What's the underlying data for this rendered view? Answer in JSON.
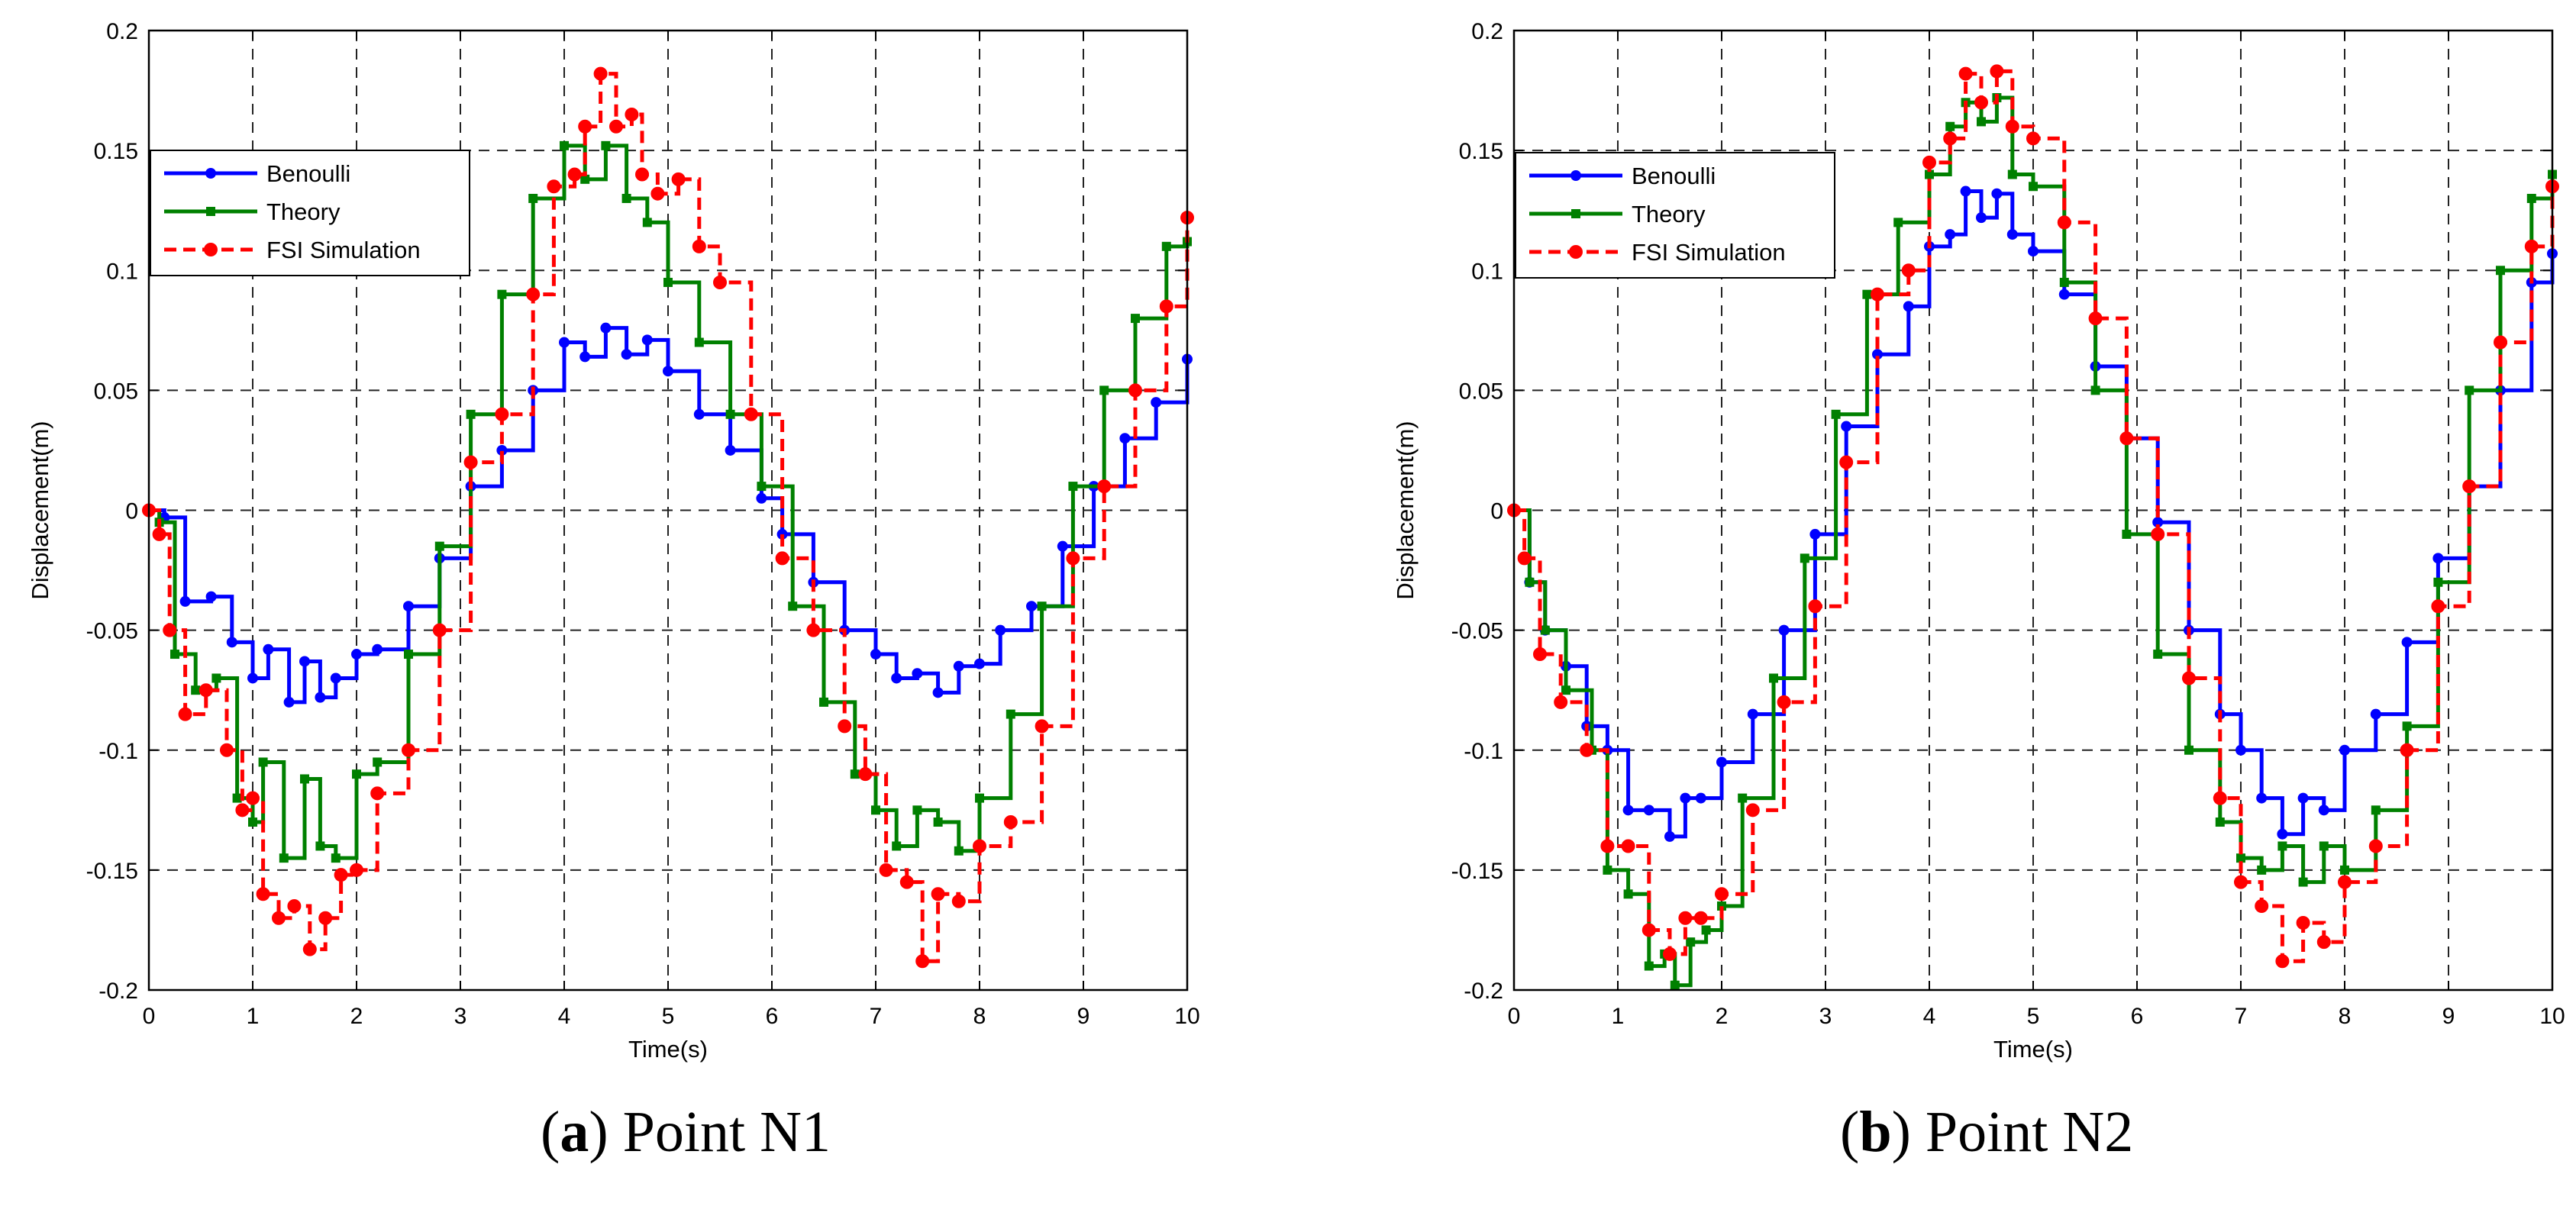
{
  "colors": {
    "benoulli": "#0000ff",
    "theory": "#008000",
    "fsi": "#ff0000"
  },
  "captions": [
    {
      "open": "(",
      "letter": "a",
      "close": ")",
      "text": " Point N1"
    },
    {
      "open": "(",
      "letter": "b",
      "close": ")",
      "text": " Point N2"
    }
  ],
  "chart_data": [
    {
      "type": "line",
      "title": "Point N1",
      "xlabel": "Time(s)",
      "ylabel": "Displacement(m)",
      "xlim": [
        0,
        10
      ],
      "ylim": [
        -0.2,
        0.2
      ],
      "xticks": [
        0,
        1,
        2,
        3,
        4,
        5,
        6,
        7,
        8,
        9,
        10
      ],
      "yticks": [
        -0.2,
        -0.15,
        -0.1,
        -0.05,
        0,
        0.05,
        0.1,
        0.15,
        0.2
      ],
      "xtick_labels": [
        "0",
        "1",
        "2",
        "3",
        "4",
        "5",
        "6",
        "7",
        "8",
        "9",
        "10"
      ],
      "ytick_labels": [
        "-0.2",
        "-0.15",
        "-0.1",
        "-0.05",
        "0",
        "0.05",
        "0.1",
        "0.15",
        "0.2"
      ],
      "grid": true,
      "legend_position": "top-left",
      "series": [
        {
          "name": "Benoulli",
          "color": "#0000ff",
          "style": "solid",
          "marker": "circle",
          "x": [
            0,
            0.15,
            0.35,
            0.6,
            0.8,
            1.0,
            1.15,
            1.35,
            1.5,
            1.65,
            1.8,
            2.0,
            2.2,
            2.5,
            2.8,
            3.1,
            3.4,
            3.7,
            4.0,
            4.2,
            4.4,
            4.6,
            4.8,
            5.0,
            5.3,
            5.6,
            5.9,
            6.1,
            6.4,
            6.7,
            7.0,
            7.2,
            7.4,
            7.6,
            7.8,
            8.0,
            8.2,
            8.5,
            8.8,
            9.1,
            9.4,
            9.7,
            10.0
          ],
          "y": [
            0,
            -0.003,
            -0.038,
            -0.036,
            -0.055,
            -0.07,
            -0.058,
            -0.08,
            -0.063,
            -0.078,
            -0.07,
            -0.06,
            -0.058,
            -0.04,
            -0.02,
            0.01,
            0.025,
            0.05,
            0.07,
            0.064,
            0.076,
            0.065,
            0.071,
            0.058,
            0.04,
            0.025,
            0.005,
            -0.01,
            -0.03,
            -0.05,
            -0.06,
            -0.07,
            -0.068,
            -0.076,
            -0.065,
            -0.064,
            -0.05,
            -0.04,
            -0.015,
            0.01,
            0.03,
            0.045,
            0.063
          ]
        },
        {
          "name": "Theory",
          "color": "#008000",
          "style": "solid",
          "marker": "square",
          "x": [
            0,
            0.1,
            0.25,
            0.45,
            0.65,
            0.85,
            1.0,
            1.1,
            1.3,
            1.5,
            1.65,
            1.8,
            2.0,
            2.2,
            2.5,
            2.8,
            3.1,
            3.4,
            3.7,
            4.0,
            4.2,
            4.4,
            4.6,
            4.8,
            5.0,
            5.3,
            5.6,
            5.9,
            6.2,
            6.5,
            6.8,
            7.0,
            7.2,
            7.4,
            7.6,
            7.8,
            8.0,
            8.3,
            8.6,
            8.9,
            9.2,
            9.5,
            9.8,
            10.0
          ],
          "y": [
            0,
            -0.005,
            -0.06,
            -0.075,
            -0.07,
            -0.12,
            -0.13,
            -0.105,
            -0.145,
            -0.112,
            -0.14,
            -0.145,
            -0.11,
            -0.105,
            -0.06,
            -0.015,
            0.04,
            0.09,
            0.13,
            0.152,
            0.138,
            0.152,
            0.13,
            0.12,
            0.095,
            0.07,
            0.04,
            0.01,
            -0.04,
            -0.08,
            -0.11,
            -0.125,
            -0.14,
            -0.125,
            -0.13,
            -0.142,
            -0.12,
            -0.085,
            -0.04,
            0.01,
            0.05,
            0.08,
            0.11,
            0.112
          ]
        },
        {
          "name": "FSI Simulation",
          "color": "#ff0000",
          "style": "dashed",
          "marker": "circle",
          "x": [
            0,
            0.1,
            0.2,
            0.35,
            0.55,
            0.75,
            0.9,
            1.0,
            1.1,
            1.25,
            1.4,
            1.55,
            1.7,
            1.85,
            2.0,
            2.2,
            2.5,
            2.8,
            3.1,
            3.4,
            3.7,
            3.9,
            4.1,
            4.2,
            4.35,
            4.5,
            4.65,
            4.75,
            4.9,
            5.1,
            5.3,
            5.5,
            5.8,
            6.1,
            6.4,
            6.7,
            6.9,
            7.1,
            7.3,
            7.45,
            7.6,
            7.8,
            8.0,
            8.3,
            8.6,
            8.9,
            9.2,
            9.5,
            9.8,
            10.0
          ],
          "y": [
            0,
            -0.01,
            -0.05,
            -0.085,
            -0.075,
            -0.1,
            -0.125,
            -0.12,
            -0.16,
            -0.17,
            -0.165,
            -0.183,
            -0.17,
            -0.152,
            -0.15,
            -0.118,
            -0.1,
            -0.05,
            0.02,
            0.04,
            0.09,
            0.135,
            0.14,
            0.16,
            0.182,
            0.16,
            0.165,
            0.14,
            0.132,
            0.138,
            0.11,
            0.095,
            0.04,
            -0.02,
            -0.05,
            -0.09,
            -0.11,
            -0.15,
            -0.155,
            -0.188,
            -0.16,
            -0.163,
            -0.14,
            -0.13,
            -0.09,
            -0.02,
            0.01,
            0.05,
            0.085,
            0.122
          ]
        }
      ]
    },
    {
      "type": "line",
      "title": "Point N2",
      "xlabel": "Time(s)",
      "ylabel": "Displacement(m)",
      "xlim": [
        0,
        10
      ],
      "ylim": [
        -0.2,
        0.2
      ],
      "xticks": [
        0,
        1,
        2,
        3,
        4,
        5,
        6,
        7,
        8,
        9,
        10
      ],
      "yticks": [
        -0.2,
        -0.15,
        -0.1,
        -0.05,
        0,
        0.05,
        0.1,
        0.15,
        0.2
      ],
      "xtick_labels": [
        "0",
        "1",
        "2",
        "3",
        "4",
        "5",
        "6",
        "7",
        "8",
        "9",
        "10"
      ],
      "ytick_labels": [
        "-0.2",
        "-0.15",
        "-0.1",
        "-0.05",
        "0",
        "0.05",
        "0.1",
        "0.15",
        "0.2"
      ],
      "grid": true,
      "legend_position": "top-left",
      "series": [
        {
          "name": "Benoulli",
          "color": "#0000ff",
          "style": "solid",
          "marker": "circle",
          "x": [
            0,
            0.15,
            0.3,
            0.5,
            0.7,
            0.9,
            1.1,
            1.3,
            1.5,
            1.65,
            1.8,
            2.0,
            2.3,
            2.6,
            2.9,
            3.2,
            3.5,
            3.8,
            4.0,
            4.2,
            4.35,
            4.5,
            4.65,
            4.8,
            5.0,
            5.3,
            5.6,
            5.9,
            6.2,
            6.5,
            6.8,
            7.0,
            7.2,
            7.4,
            7.6,
            7.8,
            8.0,
            8.3,
            8.6,
            8.9,
            9.2,
            9.5,
            9.8,
            10.0
          ],
          "y": [
            0,
            -0.03,
            -0.05,
            -0.065,
            -0.09,
            -0.1,
            -0.125,
            -0.125,
            -0.136,
            -0.12,
            -0.12,
            -0.105,
            -0.085,
            -0.05,
            -0.01,
            0.035,
            0.065,
            0.085,
            0.11,
            0.115,
            0.133,
            0.122,
            0.132,
            0.115,
            0.108,
            0.09,
            0.06,
            0.03,
            -0.005,
            -0.05,
            -0.085,
            -0.1,
            -0.12,
            -0.135,
            -0.12,
            -0.125,
            -0.1,
            -0.085,
            -0.055,
            -0.02,
            0.01,
            0.05,
            0.095,
            0.107
          ]
        },
        {
          "name": "Theory",
          "color": "#008000",
          "style": "solid",
          "marker": "square",
          "x": [
            0,
            0.15,
            0.3,
            0.5,
            0.75,
            0.9,
            1.1,
            1.3,
            1.45,
            1.55,
            1.7,
            1.85,
            2.0,
            2.2,
            2.5,
            2.8,
            3.1,
            3.4,
            3.7,
            4.0,
            4.2,
            4.35,
            4.5,
            4.65,
            4.8,
            5.0,
            5.3,
            5.6,
            5.9,
            6.2,
            6.5,
            6.8,
            7.0,
            7.2,
            7.4,
            7.6,
            7.8,
            8.0,
            8.3,
            8.6,
            8.9,
            9.2,
            9.5,
            9.8,
            10.0
          ],
          "y": [
            0,
            -0.03,
            -0.05,
            -0.075,
            -0.1,
            -0.15,
            -0.16,
            -0.19,
            -0.185,
            -0.198,
            -0.18,
            -0.175,
            -0.165,
            -0.12,
            -0.07,
            -0.02,
            0.04,
            0.09,
            0.12,
            0.14,
            0.16,
            0.17,
            0.162,
            0.172,
            0.14,
            0.135,
            0.095,
            0.05,
            -0.01,
            -0.06,
            -0.1,
            -0.13,
            -0.145,
            -0.15,
            -0.14,
            -0.155,
            -0.14,
            -0.15,
            -0.125,
            -0.09,
            -0.03,
            0.05,
            0.1,
            0.13,
            0.14
          ]
        },
        {
          "name": "FSI Simulation",
          "color": "#ff0000",
          "style": "dashed",
          "marker": "circle",
          "x": [
            0,
            0.1,
            0.25,
            0.45,
            0.7,
            0.9,
            1.1,
            1.3,
            1.5,
            1.65,
            1.8,
            2.0,
            2.3,
            2.6,
            2.9,
            3.2,
            3.5,
            3.8,
            4.0,
            4.2,
            4.35,
            4.5,
            4.65,
            4.8,
            5.0,
            5.3,
            5.6,
            5.9,
            6.2,
            6.5,
            6.8,
            7.0,
            7.2,
            7.4,
            7.6,
            7.8,
            8.0,
            8.3,
            8.6,
            8.9,
            9.2,
            9.5,
            9.8,
            10.0
          ],
          "y": [
            0,
            -0.02,
            -0.06,
            -0.08,
            -0.1,
            -0.14,
            -0.14,
            -0.175,
            -0.185,
            -0.17,
            -0.17,
            -0.16,
            -0.125,
            -0.08,
            -0.04,
            0.02,
            0.09,
            0.1,
            0.145,
            0.155,
            0.182,
            0.17,
            0.183,
            0.16,
            0.155,
            0.12,
            0.08,
            0.03,
            -0.01,
            -0.07,
            -0.12,
            -0.155,
            -0.165,
            -0.188,
            -0.172,
            -0.18,
            -0.155,
            -0.14,
            -0.1,
            -0.04,
            0.01,
            0.07,
            0.11,
            0.135
          ]
        }
      ]
    }
  ]
}
